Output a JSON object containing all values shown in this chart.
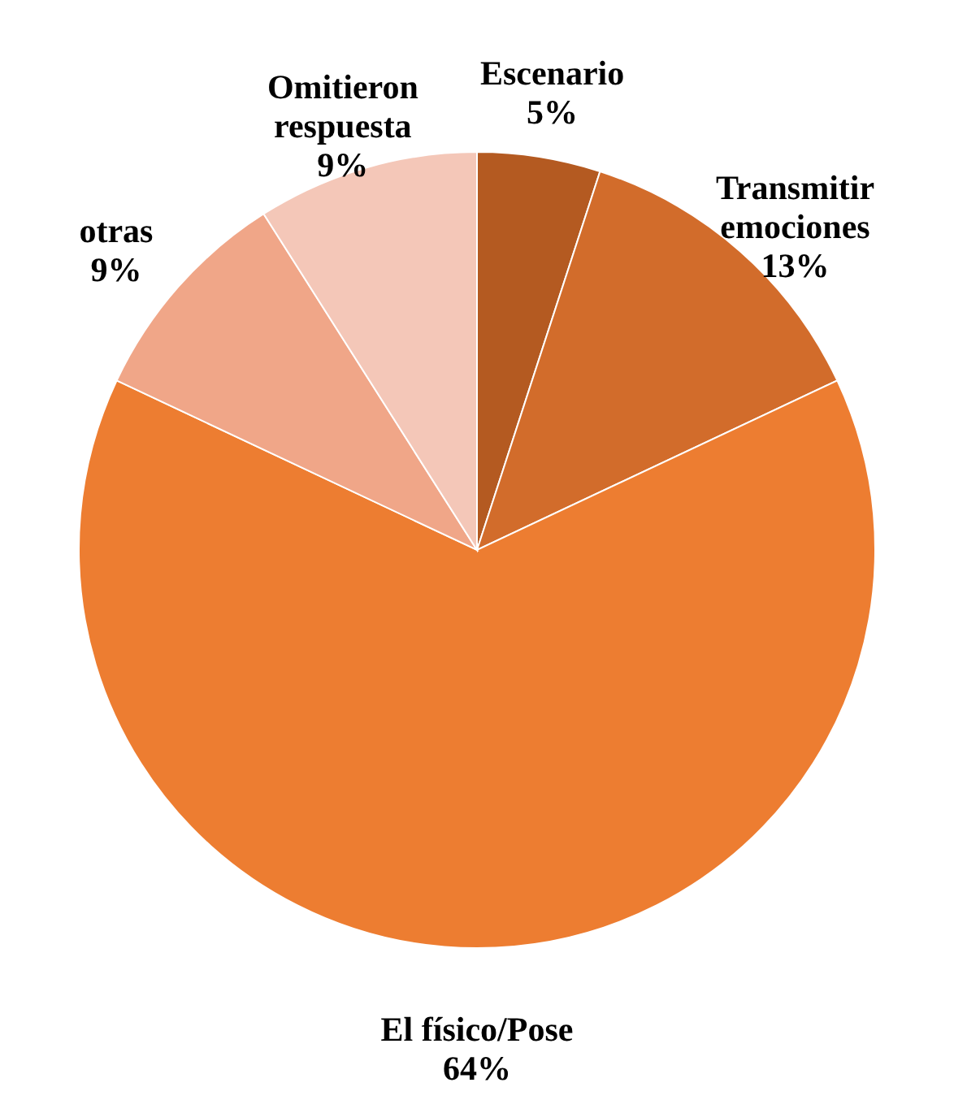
{
  "chart_data": {
    "type": "pie",
    "categories": [
      "Escenario",
      "Transmitir emociones",
      "El físico/Pose",
      "otras",
      "Omitieron respuesta"
    ],
    "values": [
      5,
      13,
      64,
      9,
      9
    ],
    "value_labels": [
      "5%",
      "13%",
      "64%",
      "9%",
      "9%"
    ],
    "colors": [
      "#b45a21",
      "#d26c2b",
      "#ed7d31",
      "#f0a688",
      "#f4c7b8"
    ]
  }
}
